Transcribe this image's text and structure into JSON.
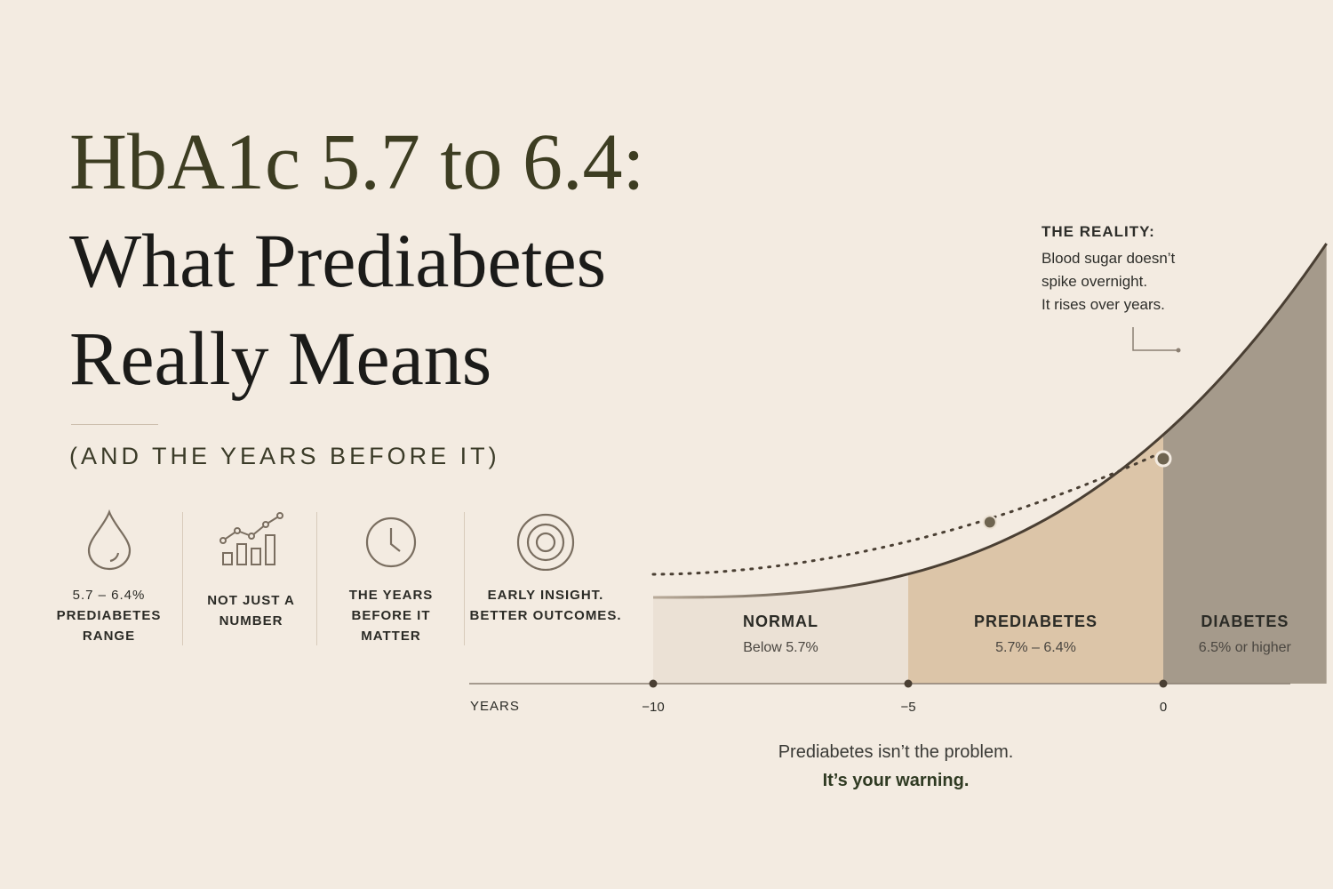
{
  "title": {
    "line1": "HbA1c 5.7 to 6.4:",
    "line2": "What Prediabetes",
    "line3": "Really Means"
  },
  "subtitle": "(AND THE YEARS BEFORE IT)",
  "features": [
    {
      "icon": "drop-icon",
      "light": "5.7 – 6.4%",
      "bold": "PREDIABETES RANGE"
    },
    {
      "icon": "bar-chart-icon",
      "light": "",
      "bold": "NOT JUST A NUMBER"
    },
    {
      "icon": "clock-icon",
      "light": "",
      "bold": "THE YEARS BEFORE IT MATTER"
    },
    {
      "icon": "target-icon",
      "light": "",
      "bold": "EARLY INSIGHT. BETTER OUTCOMES."
    }
  ],
  "note": {
    "head": "THE REALITY:",
    "lines": [
      "Blood sugar doesn’t",
      "spike overnight.",
      "It rises over years."
    ]
  },
  "chart_data": {
    "type": "area",
    "xlabel": "YEARS",
    "x_ticks": [
      -10,
      -5,
      0
    ],
    "x_tick_labels": [
      "−10",
      "−5",
      "0"
    ],
    "zones": [
      {
        "name": "NORMAL",
        "range_label": "Below 5.7%",
        "x_start": -10,
        "x_end": -5,
        "color": "#ebe1d5"
      },
      {
        "name": "PREDIABETES",
        "range_label": "5.7% – 6.4%",
        "x_start": -5,
        "x_end": 0,
        "color": "#dcc5a8"
      },
      {
        "name": "DIABETES",
        "range_label": "6.5% or higher",
        "x_start": 0,
        "x_end": 3.2,
        "color": "#a59a8b"
      }
    ],
    "curve_color": "#4a3f33",
    "trend_markers": [
      -3.4,
      0
    ]
  },
  "footer": {
    "line1": "Prediabetes isn’t the problem.",
    "line2": "It’s your warning."
  }
}
